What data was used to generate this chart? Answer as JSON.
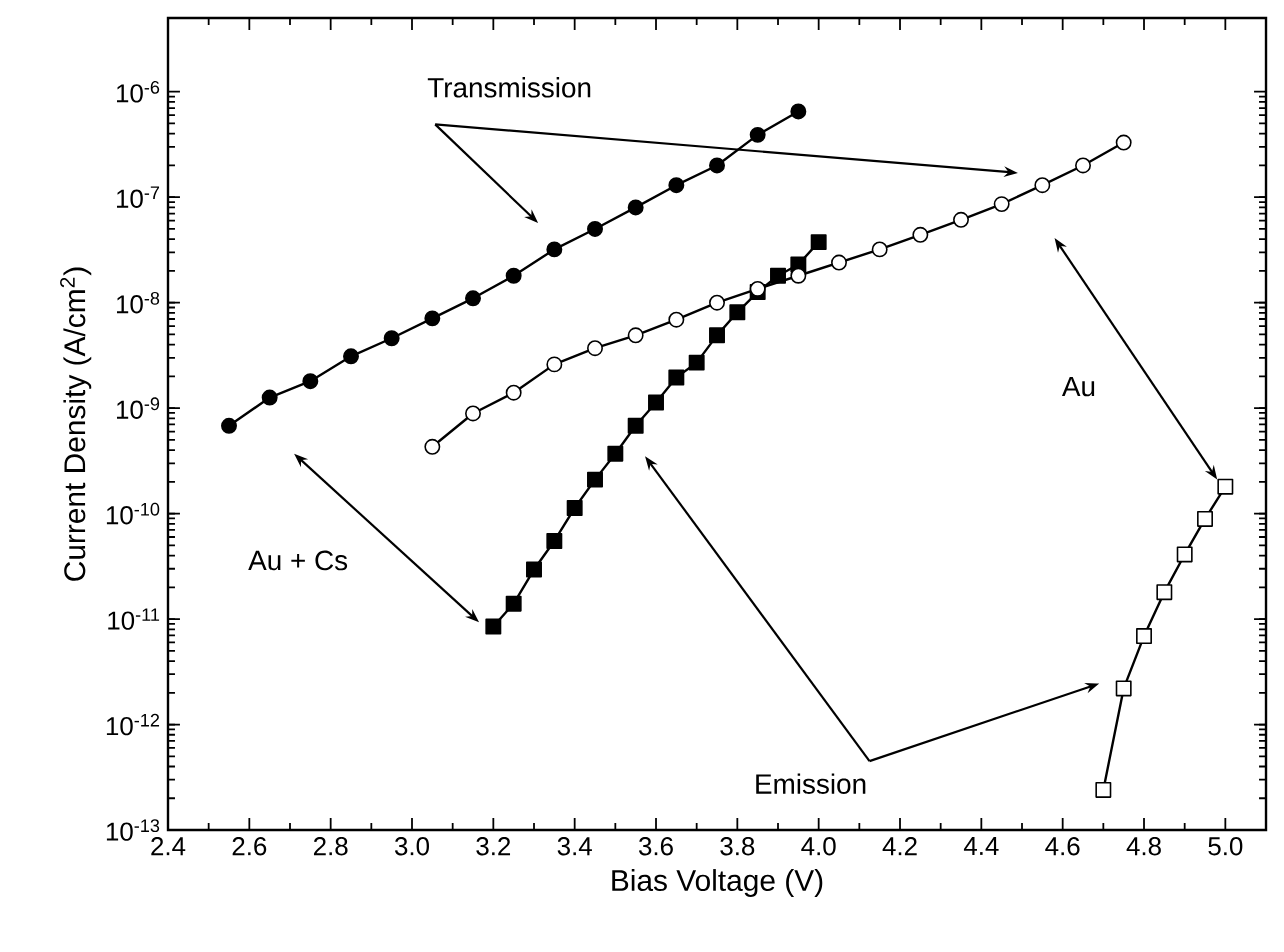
{
  "chart_data": {
    "type": "line",
    "xlabel": "Bias Voltage (V)",
    "ylabel": "Current Density (A/cm$^{2}$)",
    "xlim": [
      2.4,
      5.1
    ],
    "ylim": [
      1e-13,
      5e-06
    ],
    "log": "y",
    "grid": false,
    "line_style": "solid",
    "xticks": [
      2.4,
      2.6,
      2.8,
      {
        "value": 3.0,
        "label": "3.0"
      },
      3.2,
      3.4,
      3.6,
      3.8,
      {
        "value": 4.0,
        "label": "4.0"
      },
      4.2,
      4.4,
      4.6,
      4.8,
      {
        "value": 5.0,
        "label": "5.0"
      }
    ],
    "yticks": [
      {
        "value": 1e-13,
        "label": "10$^{-13}$"
      },
      {
        "value": 1e-12,
        "label": "10$^{-12}$"
      },
      {
        "value": 1e-11,
        "label": "10$^{-11}$"
      },
      {
        "value": 1e-10,
        "label": "10$^{-10}$"
      },
      {
        "value": 1e-09,
        "label": "10$^{-9}$"
      },
      {
        "value": 1e-08,
        "label": "10$^{-8}$"
      },
      {
        "value": 1e-07,
        "label": "10$^{-7}$"
      },
      {
        "value": 1e-06,
        "label": "10$^{-6}$"
      }
    ],
    "annotations": [
      "Transmission",
      "Au + Cs",
      "Au",
      "Emission"
    ],
    "series": [
      {
        "color": "#000000",
        "marker": "circle",
        "x": [
          2.55,
          2.65,
          2.75,
          2.85,
          2.95,
          3.05,
          3.15,
          3.25,
          3.35,
          3.45,
          3.55,
          3.65,
          3.75,
          3.85,
          3.95
        ],
        "values": [
          6.8e-10,
          1.26e-09,
          1.8e-09,
          3.1e-09,
          4.6e-09,
          7.1e-09,
          1.1e-08,
          1.8e-08,
          3.2e-08,
          5e-08,
          8e-08,
          1.3e-07,
          2e-07,
          3.9e-07,
          6.5e-07
        ]
      },
      {
        "color": "#ffffff",
        "marker": "circle",
        "x": [
          3.05,
          3.15,
          3.25,
          3.35,
          3.45,
          3.55,
          3.65,
          3.75,
          3.85,
          3.95,
          4.05,
          4.15,
          4.25,
          4.35,
          4.45,
          4.55,
          4.65,
          4.75
        ],
        "values": [
          4.3e-10,
          8.9e-10,
          1.4e-09,
          2.6e-09,
          3.7e-09,
          4.9e-09,
          6.9e-09,
          1e-08,
          1.35e-08,
          1.8e-08,
          2.4e-08,
          3.2e-08,
          4.4e-08,
          6.1e-08,
          8.6e-08,
          1.3e-07,
          2e-07,
          3.3e-07
        ]
      },
      {
        "color": "#000000",
        "marker": "square",
        "x": [
          3.2,
          3.25,
          3.3,
          3.35,
          3.4,
          3.45,
          3.5,
          3.55,
          3.6,
          3.65,
          3.7,
          3.75,
          3.8,
          3.85,
          3.9,
          3.95,
          4.0
        ],
        "values": [
          8.5e-12,
          1.4e-11,
          2.95e-11,
          5.5e-11,
          1.13e-10,
          2.1e-10,
          3.7e-10,
          6.8e-10,
          1.13e-09,
          1.95e-09,
          2.7e-09,
          4.9e-09,
          8.1e-09,
          1.26e-08,
          1.8e-08,
          2.3e-08,
          3.75e-08
        ]
      },
      {
        "color": "#ffffff",
        "marker": "square",
        "x": [
          4.7,
          4.75,
          4.8,
          4.85,
          4.9,
          4.95,
          5.0
        ],
        "values": [
          2.4e-13,
          2.2e-12,
          6.9e-12,
          1.8e-11,
          4.1e-11,
          8.9e-11,
          1.8e-10
        ]
      }
    ]
  }
}
